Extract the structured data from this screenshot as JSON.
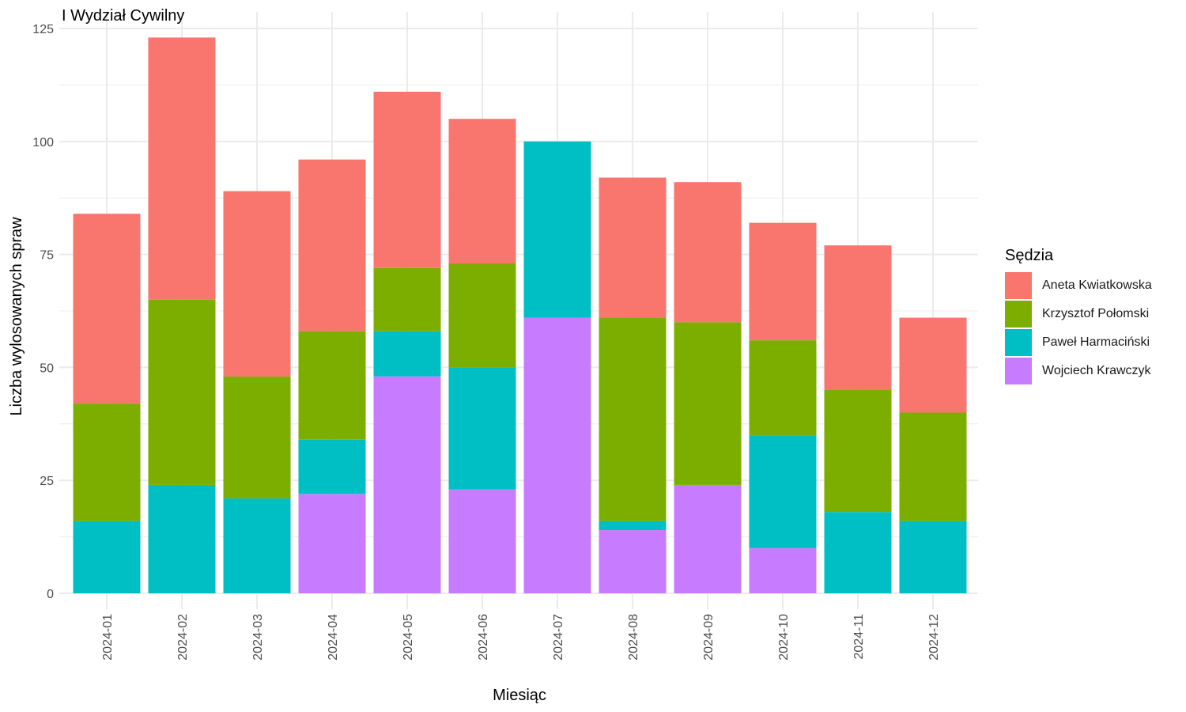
{
  "colors": {
    "background": "#ffffff",
    "grid": "#ebebeb",
    "tick_text": "#4d4d4d",
    "title_text": "#000000"
  },
  "chart_data": {
    "type": "bar",
    "stacked": true,
    "title": "I Wydział Cywilny",
    "xlabel": "Miesiąc",
    "ylabel": "Liczba wylosowanych spraw",
    "ylim": [
      0,
      125
    ],
    "yticks": [
      0,
      25,
      50,
      75,
      100,
      125
    ],
    "grid": true,
    "legend_title": "Sędzia",
    "legend_position": "right",
    "categories": [
      "2024-01",
      "2024-02",
      "2024-03",
      "2024-04",
      "2024-05",
      "2024-06",
      "2024-07",
      "2024-08",
      "2024-09",
      "2024-10",
      "2024-11",
      "2024-12"
    ],
    "series": [
      {
        "name": "Aneta Kwiatkowska",
        "color": "#F8766D",
        "values": [
          42,
          58,
          41,
          38,
          39,
          32,
          0,
          31,
          31,
          26,
          32,
          21
        ]
      },
      {
        "name": "Krzysztof Połomski",
        "color": "#7CAE00",
        "values": [
          26,
          41,
          27,
          24,
          14,
          23,
          0,
          45,
          36,
          21,
          27,
          24
        ]
      },
      {
        "name": "Paweł Harmaciński",
        "color": "#00BFC4",
        "values": [
          16,
          24,
          21,
          12,
          10,
          27,
          39,
          2,
          0,
          25,
          18,
          16
        ]
      },
      {
        "name": "Wojciech Krawczyk",
        "color": "#C77CFF",
        "values": [
          0,
          0,
          0,
          22,
          48,
          23,
          61,
          14,
          24,
          10,
          0,
          0
        ]
      }
    ]
  }
}
